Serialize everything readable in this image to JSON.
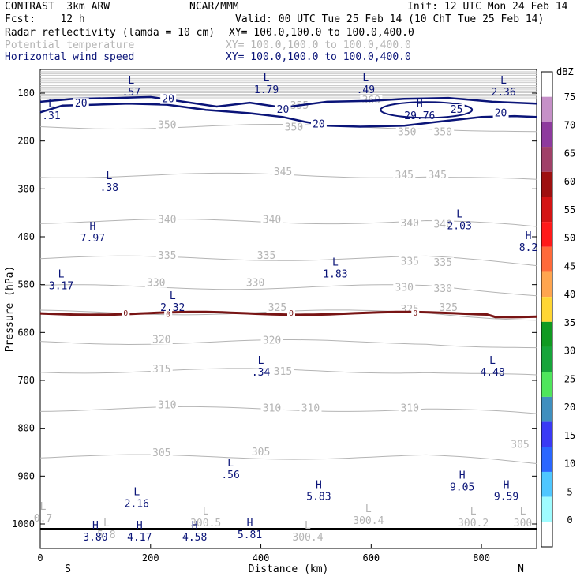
{
  "header": {
    "project": "CONTRAST",
    "model": "3km ARW",
    "org": "NCAR/MMM",
    "init": "Init: 12 UTC Mon 24 Feb 14",
    "fcst_label": "Fcst:",
    "fcst_value": "12 h",
    "valid": "Valid: 00 UTC Tue 25 Feb 14 (10 ChT Tue 25 Feb 14)"
  },
  "fields": [
    {
      "name": "Radar reflectivity (lamda = 10 cm)",
      "xy": "XY= 100.0,100.0 to 100.0,400.0",
      "color": "#000000"
    },
    {
      "name": "Potential temperature",
      "xy": "XY= 100.0,100.0 to 100.0,400.0",
      "color": "#b4b4b4"
    },
    {
      "name": "Horizontal wind speed",
      "xy": "XY= 100.0,100.0 to 100.0,400.0",
      "color": "#0a1478"
    }
  ],
  "chart_data": {
    "type": "contour",
    "xlabel": "Distance (km)",
    "ylabel": "Pressure (hPa)",
    "xlim": [
      0,
      900
    ],
    "ylim": [
      1050,
      50
    ],
    "x_ticks": [
      0,
      200,
      400,
      600,
      800
    ],
    "y_ticks": [
      100,
      200,
      300,
      400,
      500,
      600,
      700,
      800,
      900,
      1000
    ],
    "x_ends": {
      "left": "S",
      "right": "N"
    },
    "theta_levels": [
      {
        "value": 350,
        "p": 170
      },
      {
        "value": 345,
        "p": 272
      },
      {
        "value": 340,
        "p": 368
      },
      {
        "value": 335,
        "p": 445
      },
      {
        "value": 330,
        "p": 505
      },
      {
        "value": 325,
        "p": 558
      },
      {
        "value": 320,
        "p": 620
      },
      {
        "value": 315,
        "p": 680
      },
      {
        "value": 310,
        "p": 760
      },
      {
        "value": 305,
        "p": 860
      }
    ],
    "theta_labels": [
      {
        "text": "355",
        "x": 470,
        "p": 130
      },
      {
        "text": "360",
        "x": 600,
        "p": 118
      },
      {
        "text": "350",
        "x": 230,
        "p": 170
      },
      {
        "text": "350",
        "x": 460,
        "p": 175
      },
      {
        "text": "350",
        "x": 665,
        "p": 185
      },
      {
        "text": "350",
        "x": 730,
        "p": 185
      },
      {
        "text": "345",
        "x": 440,
        "p": 268
      },
      {
        "text": "345",
        "x": 660,
        "p": 275
      },
      {
        "text": "345",
        "x": 720,
        "p": 275
      },
      {
        "text": "340",
        "x": 230,
        "p": 368
      },
      {
        "text": "340",
        "x": 420,
        "p": 368
      },
      {
        "text": "340",
        "x": 670,
        "p": 375
      },
      {
        "text": "340",
        "x": 730,
        "p": 378
      },
      {
        "text": "335",
        "x": 230,
        "p": 443
      },
      {
        "text": "335",
        "x": 410,
        "p": 443
      },
      {
        "text": "335",
        "x": 670,
        "p": 455
      },
      {
        "text": "335",
        "x": 730,
        "p": 458
      },
      {
        "text": "330",
        "x": 210,
        "p": 500
      },
      {
        "text": "330",
        "x": 390,
        "p": 500
      },
      {
        "text": "330",
        "x": 660,
        "p": 510
      },
      {
        "text": "330",
        "x": 730,
        "p": 512
      },
      {
        "text": "325",
        "x": 430,
        "p": 552
      },
      {
        "text": "325",
        "x": 670,
        "p": 555
      },
      {
        "text": "325",
        "x": 740,
        "p": 552
      },
      {
        "text": "320",
        "x": 220,
        "p": 618
      },
      {
        "text": "320",
        "x": 420,
        "p": 620
      },
      {
        "text": "315",
        "x": 220,
        "p": 680
      },
      {
        "text": "315",
        "x": 440,
        "p": 685
      },
      {
        "text": "310",
        "x": 230,
        "p": 755
      },
      {
        "text": "310",
        "x": 420,
        "p": 762
      },
      {
        "text": "310",
        "x": 490,
        "p": 762
      },
      {
        "text": "310",
        "x": 670,
        "p": 762
      },
      {
        "text": "305",
        "x": 220,
        "p": 855
      },
      {
        "text": "305",
        "x": 400,
        "p": 853
      },
      {
        "text": "305",
        "x": 870,
        "p": 838
      }
    ],
    "wind_contours": [
      {
        "value": 20,
        "label_points": [
          {
            "x": 74,
            "p": 125
          },
          {
            "x": 232,
            "p": 116
          },
          {
            "x": 440,
            "p": 138
          },
          {
            "x": 505,
            "p": 168
          },
          {
            "x": 835,
            "p": 145
          }
        ]
      },
      {
        "value": 25,
        "label_points": [
          {
            "x": 755,
            "p": 138
          }
        ]
      }
    ],
    "reflectivity_contour": {
      "value": 0,
      "p": 560,
      "label_points": [
        {
          "x": 155,
          "p": 560
        },
        {
          "x": 232,
          "p": 562
        },
        {
          "x": 455,
          "p": 560
        },
        {
          "x": 680,
          "p": 560
        }
      ]
    },
    "wind_extrema": [
      {
        "type": "L",
        "value": ".57",
        "x": 165,
        "p": 80
      },
      {
        "type": "L",
        "value": "1.79",
        "x": 410,
        "p": 75
      },
      {
        "type": "L",
        "value": ".49",
        "x": 590,
        "p": 75
      },
      {
        "type": "L",
        "value": "2.36",
        "x": 840,
        "p": 80
      },
      {
        "type": "L",
        "value": ".31",
        "x": 20,
        "p": 130
      },
      {
        "type": "H",
        "value": "29.76",
        "x": 688,
        "p": 130
      },
      {
        "type": "L",
        "value": ".38",
        "x": 125,
        "p": 280
      },
      {
        "type": "H",
        "value": "7.97",
        "x": 95,
        "p": 385
      },
      {
        "type": "L",
        "value": "2.03",
        "x": 760,
        "p": 360
      },
      {
        "type": "H",
        "value": "8.2",
        "x": 885,
        "p": 405
      },
      {
        "type": "L",
        "value": "1.83",
        "x": 535,
        "p": 460
      },
      {
        "type": "L",
        "value": "3.17",
        "x": 38,
        "p": 485
      },
      {
        "type": "L",
        "value": "2.32",
        "x": 240,
        "p": 530
      },
      {
        "type": "L",
        "value": ".34",
        "x": 400,
        "p": 665
      },
      {
        "type": "L",
        "value": "4.48",
        "x": 820,
        "p": 665
      },
      {
        "type": "L",
        "value": ".56",
        "x": 345,
        "p": 880
      },
      {
        "type": "H",
        "value": "9.05",
        "x": 765,
        "p": 905
      },
      {
        "type": "H",
        "value": "9.59",
        "x": 845,
        "p": 925
      },
      {
        "type": "L",
        "value": "2.16",
        "x": 175,
        "p": 940
      },
      {
        "type": "H",
        "value": "5.83",
        "x": 505,
        "p": 925
      },
      {
        "type": "H",
        "value": "3.80",
        "x": 100,
        "p": 1010
      },
      {
        "type": "H",
        "value": "4.17",
        "x": 180,
        "p": 1010
      },
      {
        "type": "H",
        "value": "4.58",
        "x": 280,
        "p": 1010
      },
      {
        "type": "H",
        "value": "5.81",
        "x": 380,
        "p": 1005
      }
    ],
    "theta_extrema": [
      {
        "type": "L",
        "value": "300.5",
        "x": 300,
        "p": 980
      },
      {
        "type": "L",
        "value": "300.4",
        "x": 595,
        "p": 975
      },
      {
        "type": "L",
        "value": "300.4",
        "x": 485,
        "p": 1010
      },
      {
        "type": "L",
        "value": "300.2",
        "x": 785,
        "p": 980
      },
      {
        "type": "L",
        "value": "300",
        "x": 875,
        "p": 980
      },
      {
        "type": "L",
        "value": "0.7",
        "x": 5,
        "p": 970
      },
      {
        "type": "L",
        "value": "5.8",
        "x": 120,
        "p": 1005
      }
    ],
    "colorbar": {
      "unit": "dBZ",
      "levels": [
        0,
        5,
        10,
        15,
        20,
        25,
        30,
        35,
        40,
        45,
        50,
        55,
        60,
        65,
        70,
        75
      ],
      "colors": [
        "#ffffff",
        "#9ffcff",
        "#4fc7ff",
        "#2a67ff",
        "#3a3af5",
        "#3f8fbf",
        "#4fe65c",
        "#16a53a",
        "#109a21",
        "#ffd633",
        "#ffa54f",
        "#ff6a3a",
        "#ff1a1a",
        "#d41414",
        "#9e1010",
        "#a04068",
        "#8e3a9e",
        "#c690c8",
        "#ffffff"
      ]
    }
  }
}
